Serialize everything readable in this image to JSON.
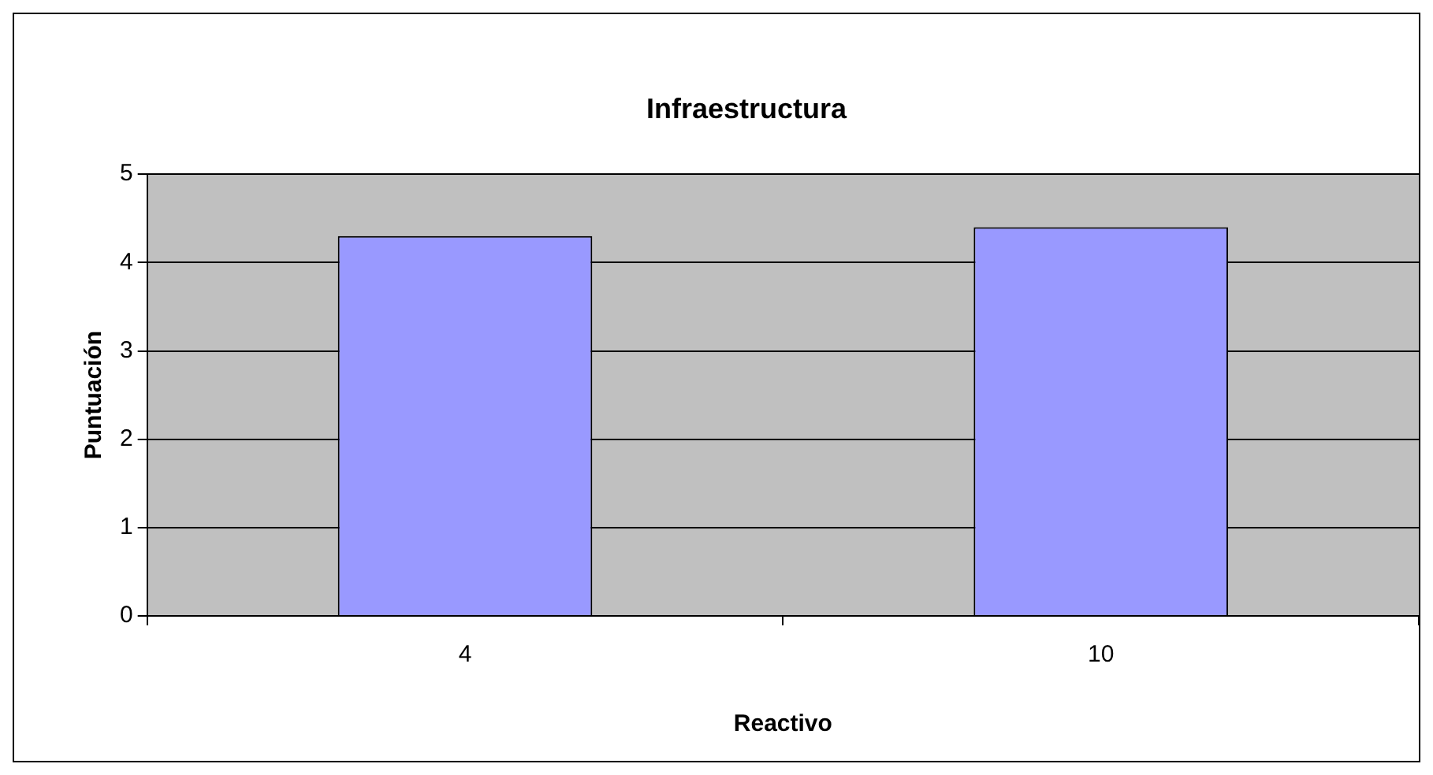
{
  "chart_data": {
    "type": "bar",
    "title": "Infraestructura",
    "xlabel": "Reactivo",
    "ylabel": "Puntuación",
    "categories": [
      "4",
      "10"
    ],
    "values": [
      4.3,
      4.4
    ],
    "color": "#9999ff",
    "ylim": [
      0,
      5
    ],
    "yticks": [
      0,
      1,
      2,
      3,
      4,
      5
    ],
    "grid": "y",
    "legend": false
  }
}
